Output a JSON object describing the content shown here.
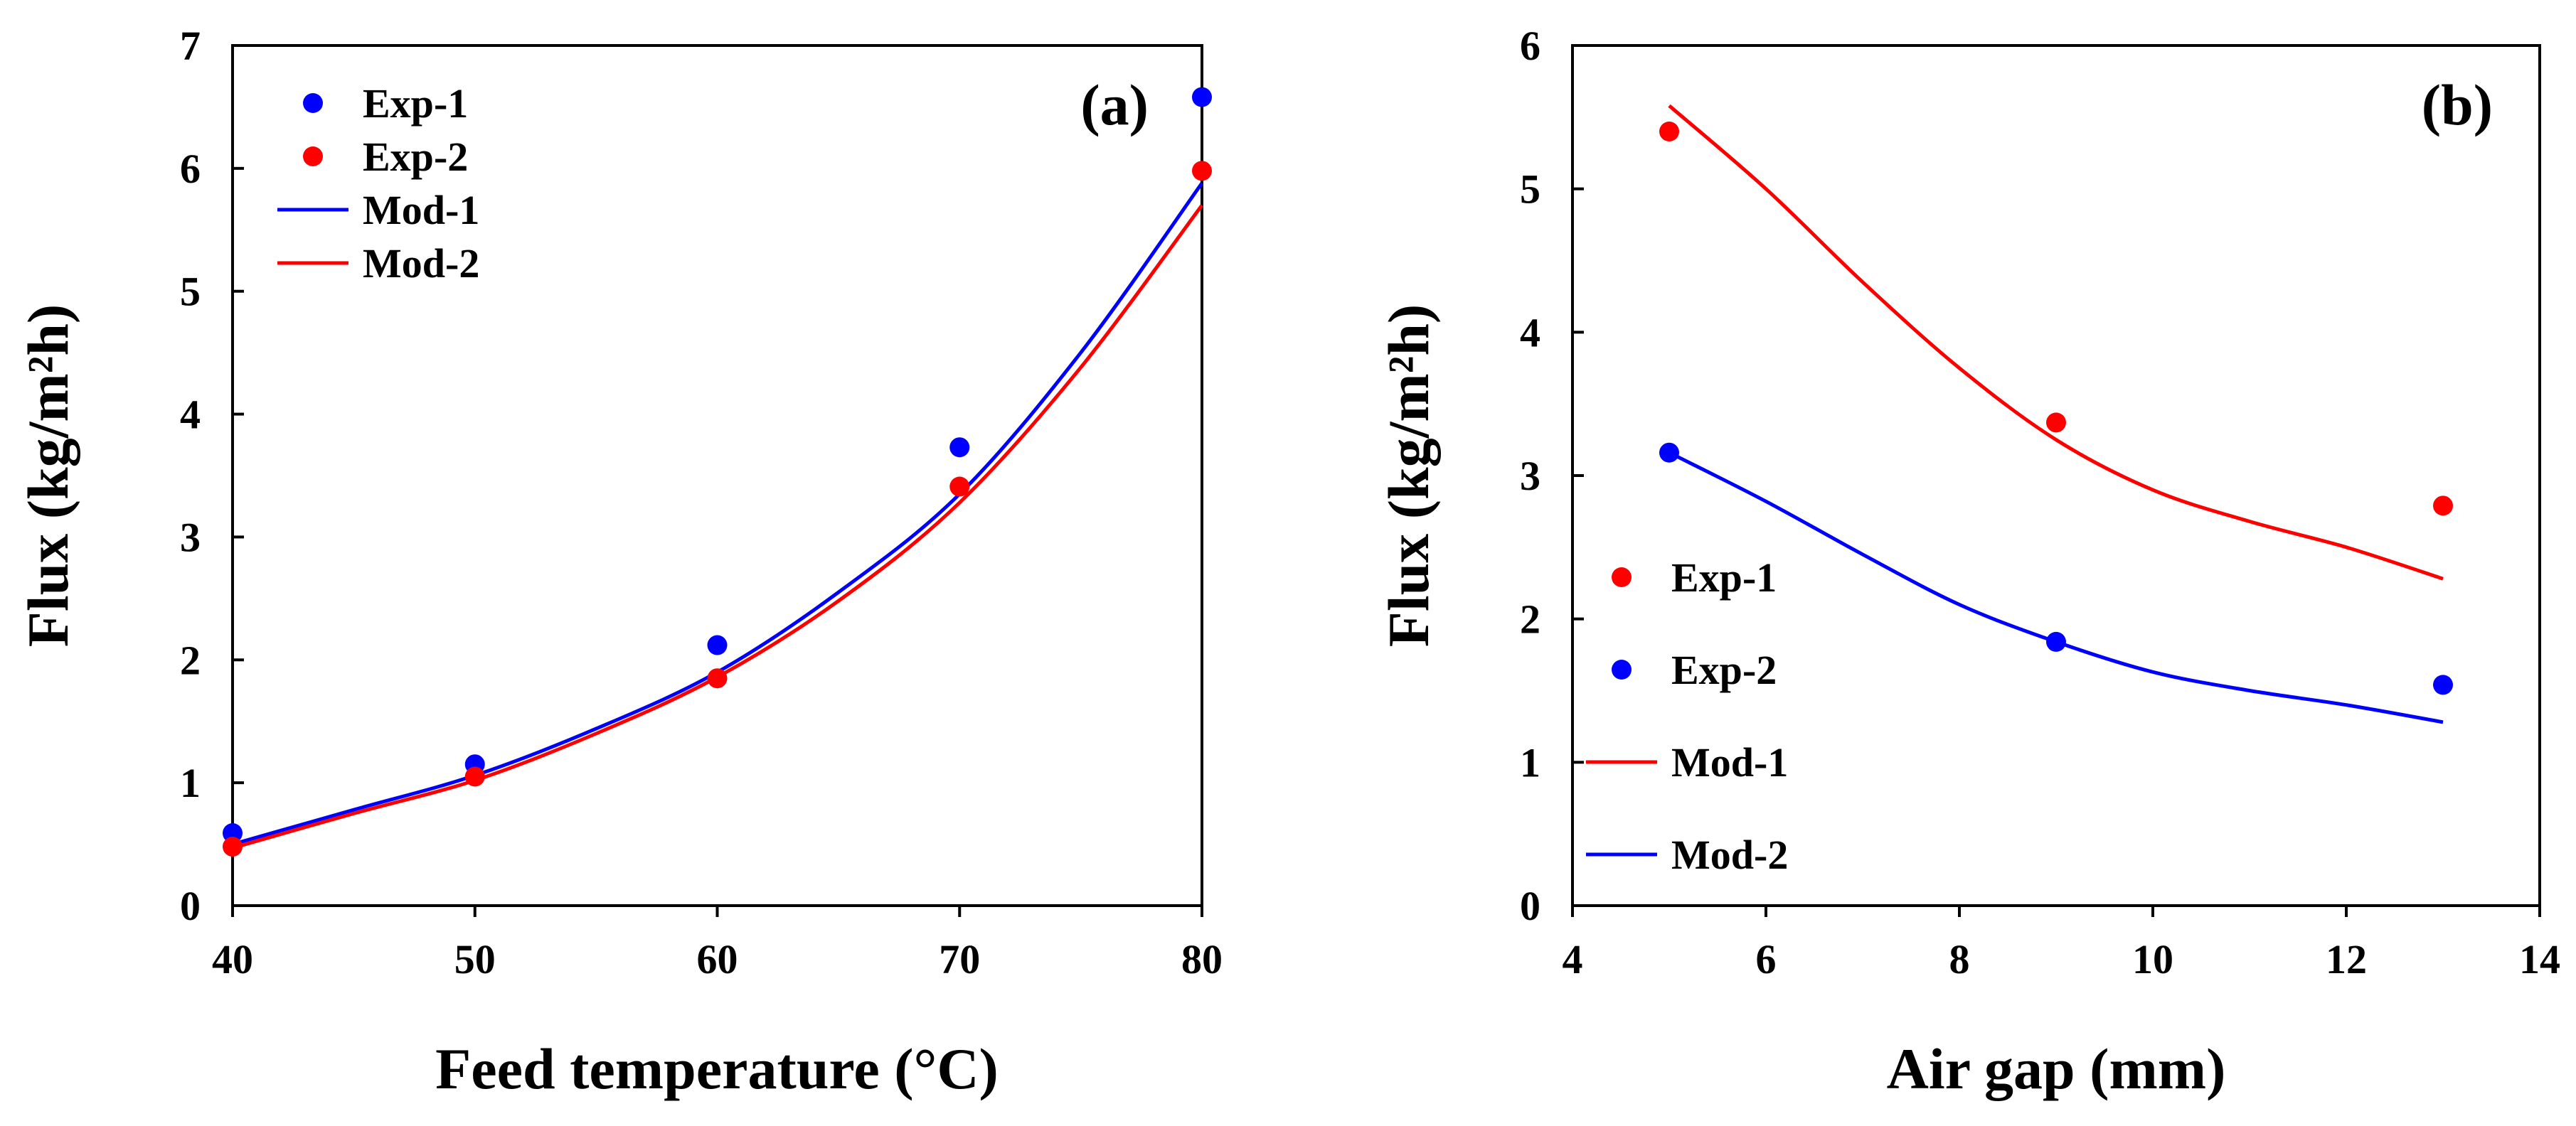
{
  "colors": {
    "blue": "#0000ff",
    "red": "#ff0000"
  },
  "chart_data": [
    {
      "type": "scatter",
      "panel_label": "(a)",
      "xlabel": "Feed temperature (°C)",
      "ylabel": "Flux (kg/m²h)",
      "xlim": [
        40,
        80
      ],
      "ylim": [
        0,
        7
      ],
      "xticks": [
        "40",
        "50",
        "60",
        "70",
        "80"
      ],
      "yticks": [
        "0",
        "1",
        "2",
        "3",
        "4",
        "5",
        "6",
        "7"
      ],
      "grid": false,
      "legend_position": "top-left",
      "series": [
        {
          "name": "Exp-1",
          "kind": "markers",
          "color": "#0000ff",
          "x": [
            40,
            50,
            60,
            70,
            80
          ],
          "y": [
            0.59,
            1.15,
            2.12,
            3.73,
            6.58
          ]
        },
        {
          "name": "Exp-2",
          "kind": "markers",
          "color": "#ff0000",
          "x": [
            40,
            50,
            60,
            70,
            80
          ],
          "y": [
            0.48,
            1.05,
            1.85,
            3.41,
            5.98
          ]
        },
        {
          "name": "Mod-1",
          "kind": "line",
          "color": "#0000ff",
          "x": [
            40,
            45,
            50,
            55,
            60,
            65,
            70,
            75,
            80
          ],
          "y": [
            0.5,
            0.78,
            1.06,
            1.44,
            1.9,
            2.55,
            3.35,
            4.5,
            5.88
          ]
        },
        {
          "name": "Mod-2",
          "kind": "line",
          "color": "#ff0000",
          "x": [
            40,
            45,
            50,
            55,
            60,
            65,
            70,
            75,
            80
          ],
          "y": [
            0.47,
            0.75,
            1.02,
            1.4,
            1.86,
            2.48,
            3.28,
            4.38,
            5.7
          ]
        }
      ]
    },
    {
      "type": "scatter",
      "panel_label": "(b)",
      "xlabel": "Air gap (mm)",
      "ylabel": "Flux (kg/m²h)",
      "xlim": [
        4,
        14
      ],
      "ylim": [
        0,
        6
      ],
      "xticks": [
        "4",
        "6",
        "8",
        "10",
        "12",
        "14"
      ],
      "yticks": [
        "0",
        "1",
        "2",
        "3",
        "4",
        "5",
        "6"
      ],
      "grid": false,
      "legend_position": "bottom-left",
      "series": [
        {
          "name": "Exp-1",
          "kind": "markers",
          "color": "#ff0000",
          "x": [
            5,
            9,
            13
          ],
          "y": [
            5.4,
            3.37,
            2.79
          ]
        },
        {
          "name": "Exp-2",
          "kind": "markers",
          "color": "#0000ff",
          "x": [
            5,
            9,
            13
          ],
          "y": [
            3.16,
            1.84,
            1.54
          ]
        },
        {
          "name": "Mod-1",
          "kind": "line",
          "color": "#ff0000",
          "x": [
            5,
            6,
            7,
            8,
            9,
            10,
            11,
            12,
            13
          ],
          "y": [
            5.58,
            5.0,
            4.35,
            3.75,
            3.25,
            2.9,
            2.68,
            2.5,
            2.28
          ]
        },
        {
          "name": "Mod-2",
          "kind": "line",
          "color": "#0000ff",
          "x": [
            5,
            6,
            7,
            8,
            9,
            10,
            11,
            12,
            13
          ],
          "y": [
            3.16,
            2.82,
            2.45,
            2.1,
            1.84,
            1.63,
            1.5,
            1.4,
            1.28
          ]
        }
      ]
    }
  ]
}
